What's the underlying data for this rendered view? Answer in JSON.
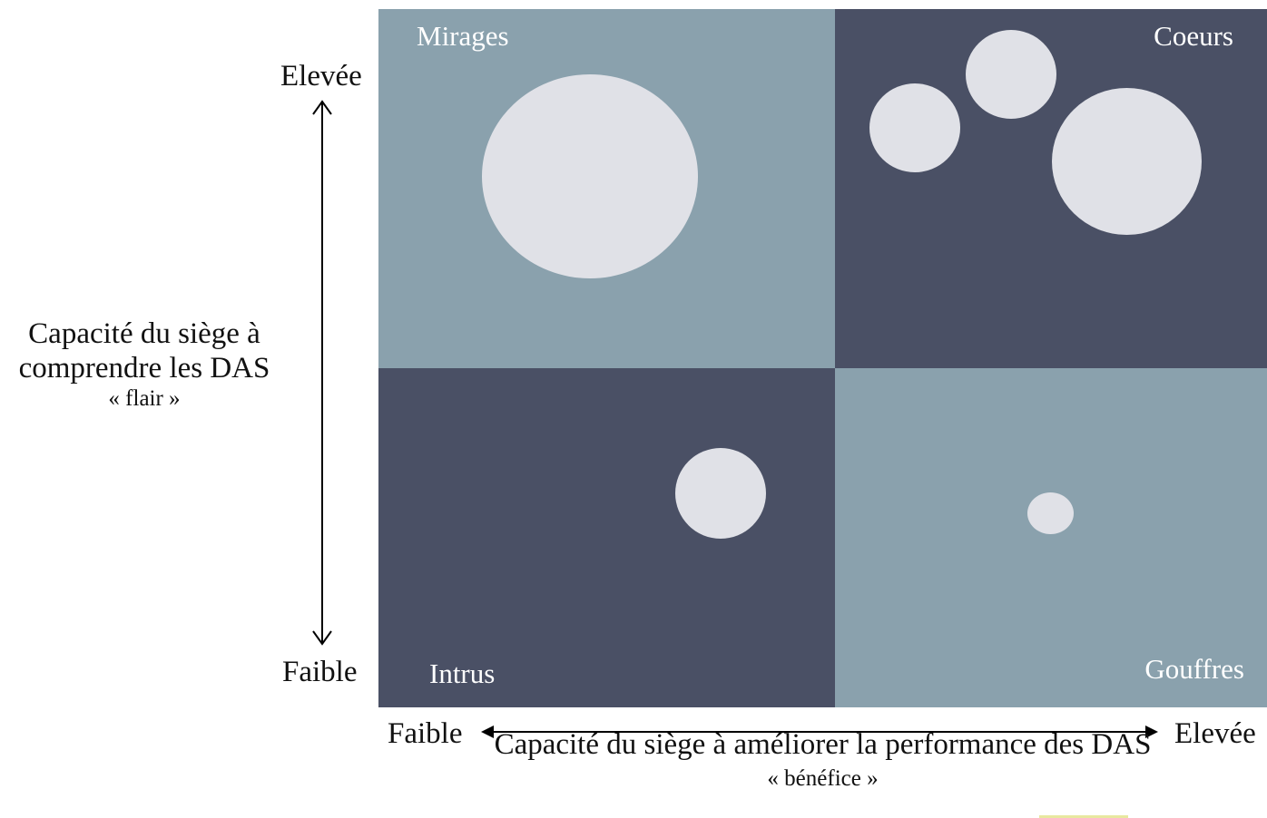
{
  "colors": {
    "light_quadrant": "#8aa1ad",
    "dark_quadrant": "#4a5065",
    "bubble": "#e0e1e7",
    "label": "#ffffff",
    "accent": "#e8e8a0"
  },
  "quadrants": {
    "top_left": "Mirages",
    "top_right": "Coeurs",
    "bottom_left": "Intrus",
    "bottom_right": "Gouffres"
  },
  "y_axis": {
    "high": "Elevée",
    "low": "Faible",
    "title_line1": "Capacité du siège à",
    "title_line2": "comprendre les DAS",
    "subtitle": "« flair »"
  },
  "x_axis": {
    "low": "Faible",
    "high": "Elevée",
    "title": "Capacité du siège à améliorer la performance des DAS",
    "subtitle": "« bénéfice »"
  }
}
